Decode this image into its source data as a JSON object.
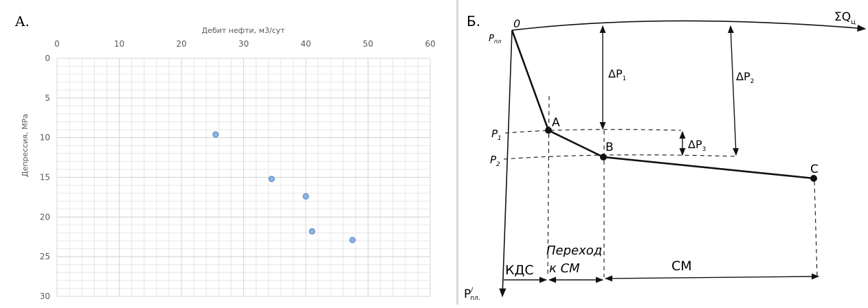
{
  "charts": [
    {
      "panel_label": "A.",
      "chart_data": {
        "type": "scatter",
        "title": "",
        "xlabel": "Дебит нефти, м3/сут",
        "ylabel": "Депрессия, МРа",
        "xlim": [
          0,
          60
        ],
        "ylim": [
          0,
          30
        ],
        "x_ticks": [
          0,
          10,
          20,
          30,
          40,
          50,
          60
        ],
        "y_ticks": [
          0,
          5,
          10,
          15,
          20,
          25,
          30
        ],
        "x_axis_position": "top",
        "y_axis_reversed": true,
        "minor_grid": true,
        "series": [
          {
            "points": [
              {
                "x": 25.5,
                "y": 9.6
              },
              {
                "x": 34.5,
                "y": 15.2
              },
              {
                "x": 40.0,
                "y": 17.4
              },
              {
                "x": 41.0,
                "y": 21.8
              },
              {
                "x": 47.5,
                "y": 22.9
              }
            ]
          }
        ],
        "colors": {
          "marker_fill": "#8db4e2",
          "marker_stroke": "#4f81bd",
          "grid": "#e6e6e6",
          "grid_major": "#d4d4d4"
        }
      }
    },
    {
      "panel_label": "Б.",
      "chart_data": {
        "type": "line",
        "title": "",
        "x_axis_label": "ΣQ",
        "x_axis_label_sub": "ц",
        "y_axis_label": "P",
        "y_axis_label_sub": "пл.",
        "y_axis_label_sup": "/",
        "origin_label": "0",
        "origin_pressure_label": "P",
        "origin_pressure_sub": "пл",
        "series": [
          {
            "points": [
              {
                "label": "0"
              },
              {
                "label": "A"
              },
              {
                "label": "B"
              },
              {
                "label": "C"
              }
            ]
          }
        ],
        "pressure_levels": [
          {
            "label": "P",
            "sub": "1"
          },
          {
            "label": "P",
            "sub": "2"
          }
        ],
        "dimensions": [
          {
            "label": "ΔP",
            "sub": "1"
          },
          {
            "label": "ΔP",
            "sub": "2"
          },
          {
            "label": "ΔP",
            "sub": "3"
          }
        ],
        "regions": [
          {
            "label": "КДС"
          },
          {
            "label_line1": "Переход",
            "label_line2": "к СМ"
          },
          {
            "label": "СМ"
          }
        ]
      }
    }
  ]
}
